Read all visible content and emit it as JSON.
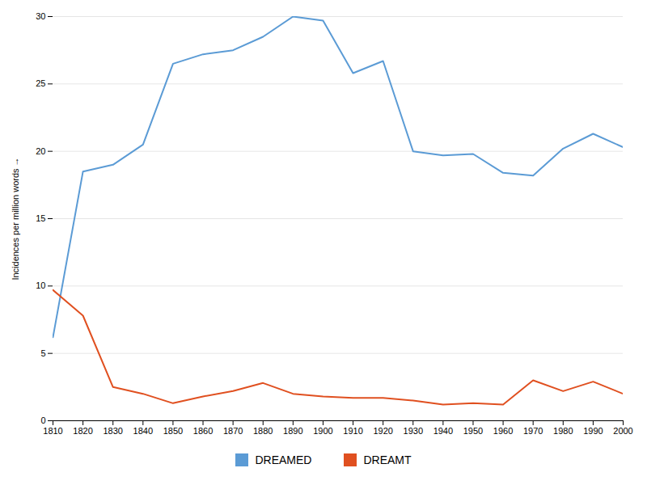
{
  "chart_data": {
    "type": "line",
    "ylabel": "Incidences per million words",
    "x": [
      1810,
      1820,
      1830,
      1840,
      1850,
      1860,
      1870,
      1880,
      1890,
      1900,
      1910,
      1920,
      1930,
      1940,
      1950,
      1960,
      1970,
      1980,
      1990,
      2000
    ],
    "series": [
      {
        "name": "DREAMED",
        "color": "#5B9BD5",
        "values": [
          6.2,
          18.5,
          19.0,
          20.5,
          26.5,
          27.2,
          27.5,
          28.5,
          30.0,
          29.7,
          25.8,
          26.7,
          20.0,
          19.7,
          19.8,
          18.4,
          18.2,
          20.2,
          21.3,
          20.3
        ]
      },
      {
        "name": "DREAMT",
        "color": "#E05020",
        "values": [
          9.7,
          7.8,
          2.5,
          2.0,
          1.3,
          1.8,
          2.2,
          2.8,
          2.0,
          1.8,
          1.7,
          1.7,
          1.5,
          1.2,
          1.3,
          1.2,
          3.0,
          2.2,
          2.9,
          2.0
        ]
      }
    ],
    "xlim": [
      1810,
      2000
    ],
    "xticks": [
      1810,
      1820,
      1830,
      1840,
      1850,
      1860,
      1870,
      1880,
      1890,
      1900,
      1910,
      1920,
      1930,
      1940,
      1950,
      1960,
      1970,
      1980,
      1990,
      2000
    ],
    "ylim": [
      0,
      30
    ],
    "yticks": [
      0,
      5,
      10,
      15,
      20,
      25,
      30
    ],
    "grid": "y",
    "legend": "bottom"
  }
}
